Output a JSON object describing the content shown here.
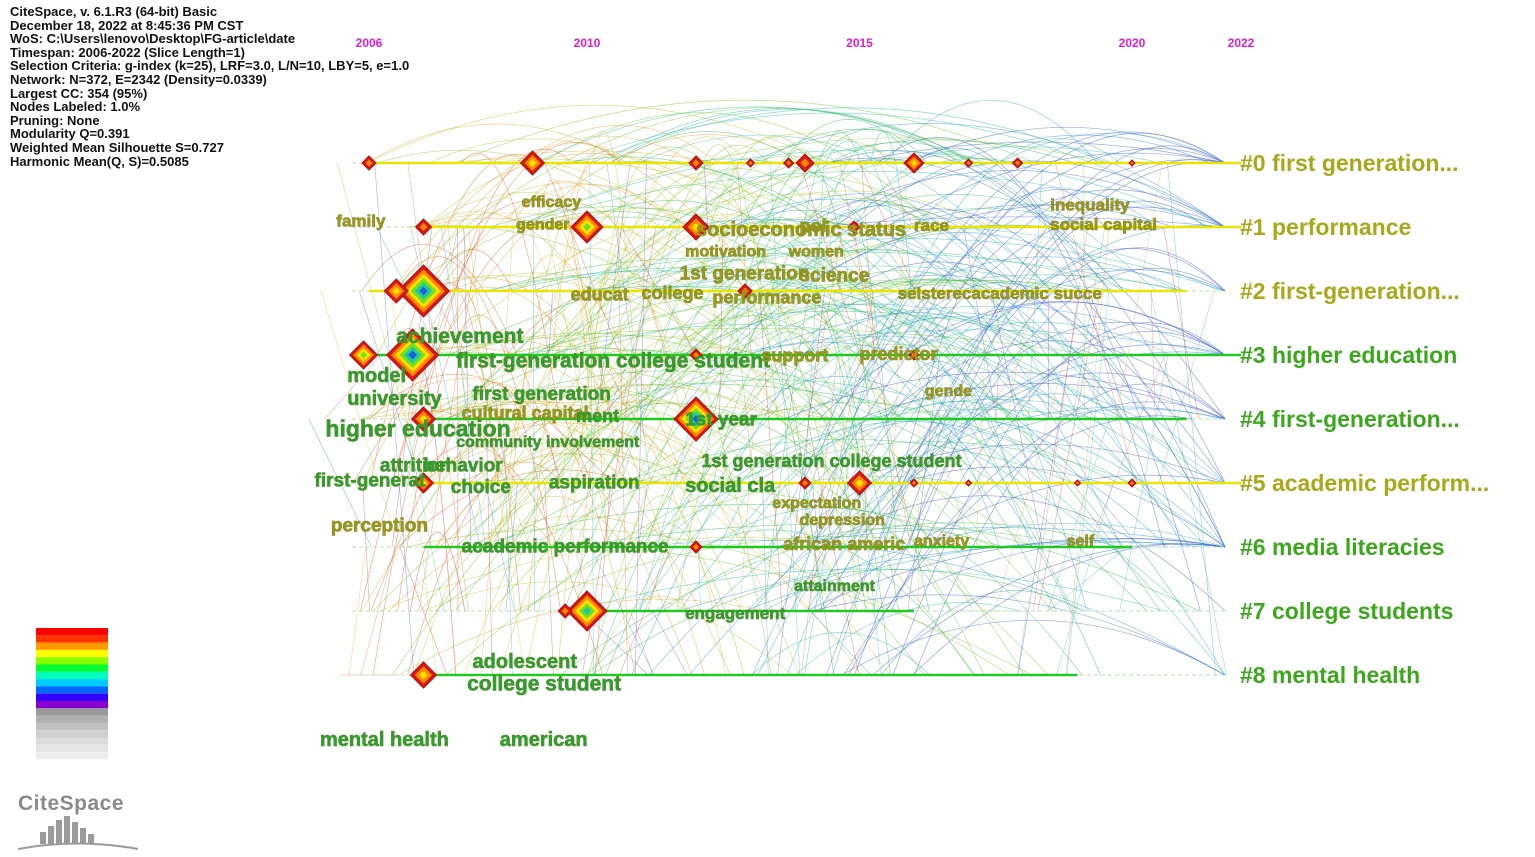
{
  "info": {
    "lines": [
      "CiteSpace, v. 6.1.R3 (64-bit) Basic",
      "December 18, 2022 at 8:45:36 PM CST",
      "WoS: C:\\Users\\lenovo\\Desktop\\FG-article\\date",
      "Timespan: 2006-2022 (Slice Length=1)",
      "Selection Criteria: g-index (k=25), LRF=3.0, L/N=10, LBY=5, e=1.0",
      "Network: N=372, E=2342 (Density=0.0339)",
      "Largest CC: 354 (95%)",
      "Nodes Labeled: 1.0%",
      "Pruning: None",
      "Modularity Q=0.391",
      "Weighted Mean Silhouette S=0.727",
      "Harmonic Mean(Q, S)=0.5085"
    ]
  },
  "years": [
    "2006",
    "2010",
    "2015",
    "2020",
    "2022"
  ],
  "clusters": [
    {
      "label": "#0 first generation...",
      "color": "#a8a81a",
      "start": 2006,
      "end": 2022
    },
    {
      "label": "#1 performance",
      "color": "#a8a81a",
      "start": 2007,
      "end": 2022
    },
    {
      "label": "#2 first-generation...",
      "color": "#a8a81a",
      "start": 2006,
      "end": 2021
    },
    {
      "label": "#3 higher education",
      "color": "#3aa81a",
      "start": 2006,
      "end": 2022
    },
    {
      "label": "#4 first-generation...",
      "color": "#3aa81a",
      "start": 2007,
      "end": 2021
    },
    {
      "label": "#5 academic perform...",
      "color": "#a8a81a",
      "start": 2007,
      "end": 2022
    },
    {
      "label": "#6 media literacies",
      "color": "#3aa81a",
      "start": 2007,
      "end": 2020
    },
    {
      "label": "#7 college students",
      "color": "#3aa81a",
      "start": 2010,
      "end": 2016
    },
    {
      "label": "#8 mental health",
      "color": "#3aa81a",
      "start": 2007,
      "end": 2019
    }
  ],
  "terms": [
    {
      "text": "efficacy",
      "year": 2008.8,
      "row": 0.6,
      "size": 16,
      "color": "#9a9a1a"
    },
    {
      "text": "family",
      "year": 2005.4,
      "row": 0.9,
      "size": 17,
      "color": "#9a9a1a"
    },
    {
      "text": "gender",
      "year": 2008.7,
      "row": 0.95,
      "size": 16,
      "color": "#9a9a1a"
    },
    {
      "text": "socioeconomic status",
      "year": 2012.0,
      "row": 1.03,
      "size": 20,
      "color": "#9a9a1a"
    },
    {
      "text": "pol",
      "year": 2013.9,
      "row": 0.98,
      "size": 18,
      "color": "#9a9a1a"
    },
    {
      "text": "race",
      "year": 2016.0,
      "row": 0.97,
      "size": 17,
      "color": "#9a9a1a"
    },
    {
      "text": "inequality",
      "year": 2018.5,
      "row": 0.65,
      "size": 17,
      "color": "#9a9a1a"
    },
    {
      "text": "social capital",
      "year": 2018.5,
      "row": 0.95,
      "size": 17,
      "color": "#9a9a1a"
    },
    {
      "text": "motivation",
      "year": 2011.8,
      "row": 1.37,
      "size": 16,
      "color": "#9a9a1a"
    },
    {
      "text": "women",
      "year": 2013.7,
      "row": 1.37,
      "size": 16,
      "color": "#9a9a1a"
    },
    {
      "text": "1st generation",
      "year": 2011.7,
      "row": 1.72,
      "size": 19,
      "color": "#9a9a1a"
    },
    {
      "text": "science",
      "year": 2013.9,
      "row": 1.75,
      "size": 19,
      "color": "#9a9a1a"
    },
    {
      "text": "educat",
      "year": 2009.7,
      "row": 2.05,
      "size": 18,
      "color": "#9a9a1a"
    },
    {
      "text": "college",
      "year": 2011.0,
      "row": 2.03,
      "size": 18,
      "color": "#9a9a1a"
    },
    {
      "text": "performance",
      "year": 2012.3,
      "row": 2.1,
      "size": 18,
      "color": "#9a9a1a"
    },
    {
      "text": "selsterecacademic succe",
      "year": 2015.7,
      "row": 2.03,
      "size": 17,
      "color": "#9a9a1a"
    },
    {
      "text": "achievement",
      "year": 2006.5,
      "row": 2.7,
      "size": 21,
      "color": "#2ea02e"
    },
    {
      "text": "first-generation college student",
      "year": 2007.6,
      "row": 3.08,
      "size": 21,
      "color": "#2ea02e"
    },
    {
      "text": "model",
      "year": 2005.6,
      "row": 3.31,
      "size": 20,
      "color": "#2ea02e"
    },
    {
      "text": "support",
      "year": 2013.2,
      "row": 3.0,
      "size": 18,
      "color": "#9a9a1a"
    },
    {
      "text": "predictor",
      "year": 2015.0,
      "row": 2.98,
      "size": 18,
      "color": "#9a9a1a"
    },
    {
      "text": "university",
      "year": 2005.6,
      "row": 3.67,
      "size": 20,
      "color": "#2ea02e"
    },
    {
      "text": "first generation",
      "year": 2007.9,
      "row": 3.6,
      "size": 19,
      "color": "#2ea02e"
    },
    {
      "text": "gende",
      "year": 2016.2,
      "row": 3.55,
      "size": 16,
      "color": "#9a9a1a"
    },
    {
      "text": "cultural capital",
      "year": 2007.7,
      "row": 3.9,
      "size": 18,
      "color": "#9a9a1a"
    },
    {
      "text": "ment",
      "year": 2009.8,
      "row": 3.95,
      "size": 18,
      "color": "#2ea02e"
    },
    {
      "text": "higher education",
      "year": 2005.2,
      "row": 4.15,
      "size": 23,
      "color": "#2ea02e"
    },
    {
      "text": "1st year",
      "year": 2011.8,
      "row": 4.0,
      "size": 19,
      "color": "#2ea02e"
    },
    {
      "text": "community involvement",
      "year": 2007.6,
      "row": 4.35,
      "size": 16,
      "color": "#2ea02e"
    },
    {
      "text": "attrition",
      "year": 2006.2,
      "row": 4.72,
      "size": 19,
      "color": "#2ea02e"
    },
    {
      "text": "behavior",
      "year": 2007.0,
      "row": 4.72,
      "size": 19,
      "color": "#2ea02e"
    },
    {
      "text": "1st generation college student",
      "year": 2012.1,
      "row": 4.65,
      "size": 18,
      "color": "#2ea02e"
    },
    {
      "text": "first-generat",
      "year": 2005.0,
      "row": 4.95,
      "size": 19,
      "color": "#2ea02e"
    },
    {
      "text": "choice",
      "year": 2007.5,
      "row": 5.05,
      "size": 19,
      "color": "#2ea02e"
    },
    {
      "text": "aspiration",
      "year": 2009.3,
      "row": 4.98,
      "size": 19,
      "color": "#2ea02e"
    },
    {
      "text": "social cla",
      "year": 2011.8,
      "row": 5.03,
      "size": 20,
      "color": "#2ea02e"
    },
    {
      "text": "expectation",
      "year": 2013.4,
      "row": 5.3,
      "size": 16,
      "color": "#9a9a1a"
    },
    {
      "text": "depression",
      "year": 2013.9,
      "row": 5.57,
      "size": 16,
      "color": "#9a9a1a"
    },
    {
      "text": "perception",
      "year": 2005.3,
      "row": 5.65,
      "size": 19,
      "color": "#9a9a1a"
    },
    {
      "text": "academic performance",
      "year": 2007.7,
      "row": 5.98,
      "size": 19,
      "color": "#2ea02e"
    },
    {
      "text": "african americ",
      "year": 2013.6,
      "row": 5.95,
      "size": 18,
      "color": "#9a9a1a"
    },
    {
      "text": "anxiety",
      "year": 2016.0,
      "row": 5.9,
      "size": 16,
      "color": "#9a9a1a"
    },
    {
      "text": "self",
      "year": 2018.8,
      "row": 5.9,
      "size": 16,
      "color": "#9a9a1a"
    },
    {
      "text": "attainment",
      "year": 2013.8,
      "row": 6.6,
      "size": 16,
      "color": "#2ea02e"
    },
    {
      "text": "engagement",
      "year": 2011.8,
      "row": 7.03,
      "size": 17,
      "color": "#2ea02e"
    },
    {
      "text": "adolescent",
      "year": 2007.9,
      "row": 7.78,
      "size": 20,
      "color": "#2ea02e"
    },
    {
      "text": "college student",
      "year": 2007.8,
      "row": 8.13,
      "size": 21,
      "color": "#2ea02e"
    },
    {
      "text": "mental health",
      "year": 2005.1,
      "row": 9.0,
      "size": 20,
      "color": "#2ea02e"
    },
    {
      "text": "american",
      "year": 2008.4,
      "row": 9.0,
      "size": 20,
      "color": "#2ea02e"
    }
  ],
  "nodes": [
    {
      "year": 2006.0,
      "row": 0,
      "size": 7
    },
    {
      "year": 2009.0,
      "row": 0,
      "size": 12
    },
    {
      "year": 2012.0,
      "row": 0,
      "size": 7
    },
    {
      "year": 2013.0,
      "row": 0,
      "size": 4
    },
    {
      "year": 2013.7,
      "row": 0,
      "size": 5
    },
    {
      "year": 2014.0,
      "row": 0,
      "size": 9
    },
    {
      "year": 2016.0,
      "row": 0,
      "size": 10
    },
    {
      "year": 2017.0,
      "row": 0,
      "size": 4
    },
    {
      "year": 2017.9,
      "row": 0,
      "size": 5
    },
    {
      "year": 2020.0,
      "row": 0,
      "size": 3
    },
    {
      "year": 2007.0,
      "row": 1,
      "size": 8
    },
    {
      "year": 2010.0,
      "row": 1,
      "size": 16
    },
    {
      "year": 2012.0,
      "row": 1,
      "size": 13
    },
    {
      "year": 2014.9,
      "row": 1,
      "size": 6
    },
    {
      "year": 2007.0,
      "row": 2,
      "size": 26
    },
    {
      "year": 2006.5,
      "row": 2,
      "size": 12
    },
    {
      "year": 2012.9,
      "row": 2,
      "size": 7
    },
    {
      "year": 2006.8,
      "row": 3,
      "size": 26
    },
    {
      "year": 2005.9,
      "row": 3,
      "size": 14
    },
    {
      "year": 2012.0,
      "row": 3,
      "size": 6
    },
    {
      "year": 2016.0,
      "row": 3,
      "size": 5
    },
    {
      "year": 2007.0,
      "row": 4,
      "size": 12
    },
    {
      "year": 2012.0,
      "row": 4,
      "size": 22
    },
    {
      "year": 2007.0,
      "row": 5,
      "size": 10
    },
    {
      "year": 2014.0,
      "row": 5,
      "size": 6
    },
    {
      "year": 2015.0,
      "row": 5,
      "size": 12
    },
    {
      "year": 2016.0,
      "row": 5,
      "size": 4
    },
    {
      "year": 2017.0,
      "row": 5,
      "size": 3
    },
    {
      "year": 2019.0,
      "row": 5,
      "size": 3
    },
    {
      "year": 2020.0,
      "row": 5,
      "size": 4
    },
    {
      "year": 2012.0,
      "row": 6,
      "size": 6
    },
    {
      "year": 2010.0,
      "row": 7,
      "size": 20
    },
    {
      "year": 2009.6,
      "row": 7,
      "size": 7
    },
    {
      "year": 2007.0,
      "row": 8,
      "size": 13
    }
  ],
  "legend": {
    "colors": [
      "#ff0000",
      "#ff3300",
      "#ff9900",
      "#ffff00",
      "#88ff00",
      "#00ff33",
      "#00ffbb",
      "#00ccff",
      "#0066ff",
      "#3300ff",
      "#8800cc",
      "#9a9a9a",
      "#b0b0b0",
      "#c2c2c2",
      "#d0d0d0",
      "#dcdcdc",
      "#e6e6e6",
      "#eeeeee"
    ]
  },
  "logo": {
    "text": "CiteSpace"
  }
}
